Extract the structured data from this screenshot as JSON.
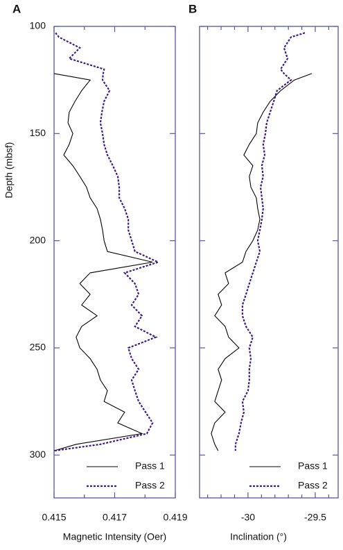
{
  "chart_data": [
    {
      "type": "line",
      "panel": "A",
      "ylabel": "Depth (mbsf)",
      "xlabel": "Magnetic Intensity (Oer)",
      "x": [
        103,
        105,
        110,
        115,
        120,
        122,
        125,
        130,
        135,
        140,
        145,
        150,
        155,
        160,
        165,
        170,
        175,
        180,
        185,
        190,
        195,
        200,
        205,
        210,
        215,
        220,
        225,
        230,
        235,
        240,
        245,
        250,
        255,
        260,
        265,
        270,
        275,
        280,
        285,
        290,
        295,
        298
      ],
      "series": [
        {
          "name": "Pass 1",
          "color": "#000000",
          "dashed": false,
          "values": [
            null,
            null,
            null,
            null,
            null,
            0.415,
            0.41619,
            0.41591,
            0.41569,
            0.4155,
            0.41546,
            0.41562,
            0.4155,
            0.41532,
            0.41562,
            0.41585,
            0.41607,
            0.41619,
            0.41642,
            0.41653,
            0.4166,
            0.41665,
            0.41676,
            0.41825,
            0.41619,
            0.41585,
            0.41619,
            0.41591,
            0.41642,
            0.41591,
            0.41573,
            0.41585,
            0.41619,
            0.41642,
            0.41653,
            0.41676,
            0.41665,
            0.41733,
            0.4171,
            0.4179,
            0.41573,
            0.415
          ]
        },
        {
          "name": "Pass 2",
          "color": "#3b1a8c",
          "dashed": true,
          "values": [
            0.41505,
            0.41516,
            0.41585,
            0.4155,
            0.41665,
            0.41662,
            0.4166,
            0.41683,
            0.41665,
            0.41658,
            0.41653,
            0.4166,
            0.41665,
            0.41676,
            0.41694,
            0.4171,
            0.41715,
            0.41715,
            0.41733,
            0.41745,
            0.41745,
            0.41756,
            0.41767,
            0.41843,
            0.41733,
            0.41767,
            0.41779,
            0.41756,
            0.4179,
            0.41767,
            0.41836,
            0.41745,
            0.41756,
            0.41779,
            0.41756,
            0.41767,
            0.41779,
            0.41802,
            0.41825,
            0.41806,
            0.41653,
            0.415
          ]
        }
      ],
      "xlim": [
        0.415,
        0.419
      ],
      "xticks": [
        0.415,
        0.417,
        0.419
      ],
      "xminor_ticks": [
        0.416,
        0.418
      ],
      "ylim": [
        100,
        320
      ],
      "yticks": [
        100,
        150,
        200,
        250,
        300
      ],
      "ytick_labels": true,
      "invert_y": true,
      "legend": "lower right"
    },
    {
      "type": "line",
      "panel": "B",
      "xlabel": "Inclination (°)",
      "x": [
        103,
        105,
        110,
        115,
        120,
        122,
        125,
        130,
        135,
        140,
        145,
        150,
        155,
        160,
        165,
        170,
        175,
        180,
        185,
        190,
        195,
        200,
        205,
        210,
        215,
        220,
        225,
        230,
        235,
        240,
        245,
        250,
        255,
        260,
        265,
        270,
        275,
        280,
        285,
        290,
        295,
        298
      ],
      "series": [
        {
          "name": "Pass 1",
          "color": "#000000",
          "dashed": false,
          "values": [
            null,
            null,
            null,
            null,
            null,
            -29.526,
            -29.655,
            -29.758,
            -29.835,
            -29.887,
            -29.928,
            -29.938,
            -29.99,
            -30.031,
            -29.964,
            -29.99,
            -29.979,
            -29.938,
            -29.928,
            -29.912,
            -29.928,
            -29.964,
            -30.015,
            -30.041,
            -30.17,
            -30.144,
            -30.222,
            -30.196,
            -30.247,
            -30.17,
            -30.144,
            -30.067,
            -30.17,
            -30.222,
            -30.196,
            -30.222,
            -30.247,
            -30.17,
            -30.247,
            -30.273,
            -30.247,
            -30.222
          ]
        },
        {
          "name": "Pass 2",
          "color": "#3b1a8c",
          "dashed": true,
          "values": [
            -29.577,
            -29.68,
            -29.732,
            -29.706,
            -29.758,
            -29.732,
            -29.68,
            -29.784,
            -29.809,
            -29.835,
            -29.861,
            -29.871,
            -29.887,
            -29.876,
            -29.897,
            -29.887,
            -29.907,
            -29.897,
            -29.887,
            -29.897,
            -29.912,
            -29.928,
            -29.912,
            -29.938,
            -29.964,
            -29.99,
            -30.015,
            -30.041,
            -30.041,
            -30.015,
            -29.964,
            -29.99,
            -29.979,
            -29.99,
            -29.99,
            -30,
            -30.041,
            -30.031,
            -30.052,
            -30.067,
            -30.093,
            -30.093
          ]
        }
      ],
      "xlim": [
        -30.36,
        -29.33
      ],
      "xticks": [
        -30,
        -29.5
      ],
      "xminor_ticks": [
        -30.3,
        -30.2,
        -30.1,
        -29.9,
        -29.8,
        -29.7,
        -29.6,
        -29.4
      ],
      "ylim": [
        100,
        320
      ],
      "yticks": [
        100,
        150,
        200,
        250,
        300
      ],
      "ytick_labels": false,
      "invert_y": true,
      "legend": "lower right"
    }
  ]
}
